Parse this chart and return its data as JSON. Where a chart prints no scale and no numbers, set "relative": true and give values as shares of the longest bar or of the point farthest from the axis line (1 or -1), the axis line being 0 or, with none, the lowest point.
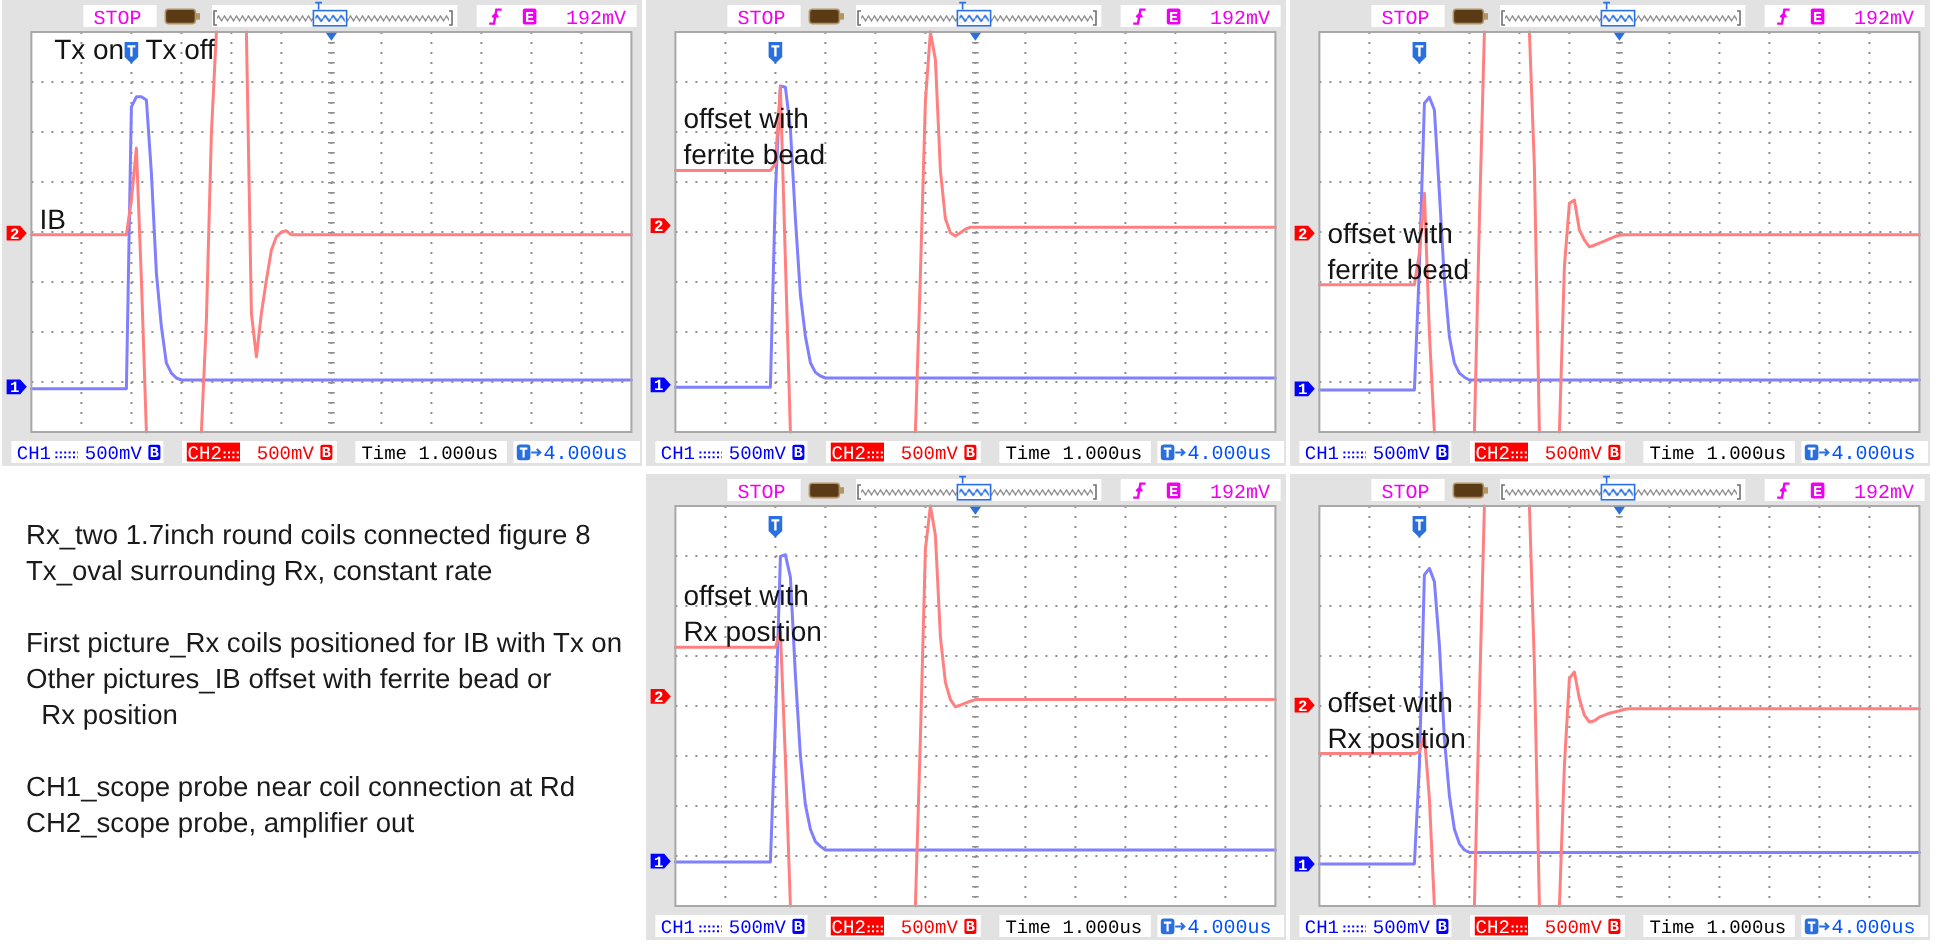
{
  "chart_data": [
    {
      "type": "line",
      "relative": true,
      "categories": [
        null,
        null,
        null,
        null,
        null,
        null,
        null,
        null,
        null,
        null,
        null,
        null,
        null,
        null,
        null,
        null,
        null,
        null,
        null,
        null,
        null,
        null,
        null,
        null,
        null,
        null,
        null,
        null,
        null,
        null,
        null,
        null,
        null,
        null,
        null,
        null,
        null,
        null,
        null,
        null,
        null,
        null,
        null,
        null,
        null,
        null,
        null,
        null,
        null,
        null,
        null,
        null,
        null,
        null,
        null,
        null,
        null,
        null,
        null,
        null,
        null,
        null,
        null,
        null,
        null,
        null,
        null,
        null,
        null,
        null,
        null,
        null,
        null,
        null,
        null,
        null,
        null,
        null,
        null,
        null,
        null,
        null,
        null,
        null,
        null,
        null,
        null,
        null,
        null,
        null,
        null,
        null,
        null,
        null,
        null,
        null,
        null,
        null,
        null,
        null,
        null,
        null,
        null,
        null,
        null,
        null,
        null,
        null,
        null,
        null,
        null,
        null,
        null,
        null,
        null,
        null,
        null,
        null,
        null,
        null,
        null
      ],
      "series": [
        {
          "name": "CH1",
          "color": "#8080ff",
          "values": [
            0.108,
            0.108,
            0.108,
            0.108,
            0.108,
            0.108,
            0.108,
            0.108,
            0.108,
            0.108,
            0.108,
            0.108,
            0.108,
            0.108,
            0.108,
            0.108,
            0.108,
            0.108,
            0.108,
            0.108,
            0.813,
            0.838,
            0.838,
            0.83,
            0.647,
            0.397,
            0.263,
            0.172,
            0.147,
            0.135,
            0.13,
            0.13,
            0.13,
            0.13,
            0.13,
            0.13,
            0.13,
            0.13,
            0.13,
            0.13,
            0.13,
            0.13,
            0.13,
            0.13,
            0.13,
            0.13,
            0.13,
            0.13,
            0.13,
            0.13,
            0.13,
            0.13,
            0.13,
            0.13,
            0.13,
            0.13,
            0.13,
            0.13,
            0.13,
            0.13,
            0.13,
            0.13,
            0.13,
            0.13,
            0.13,
            0.13,
            0.13,
            0.13,
            0.13,
            0.13,
            0.13,
            0.13,
            0.13,
            0.13,
            0.13,
            0.13,
            0.13,
            0.13,
            0.13,
            0.13,
            0.13,
            0.13,
            0.13,
            0.13,
            0.13,
            0.13,
            0.13,
            0.13,
            0.13,
            0.13,
            0.13,
            0.13,
            0.13,
            0.13,
            0.13,
            0.13,
            0.13,
            0.13,
            0.13,
            0.13,
            0.13,
            0.13,
            0.13,
            0.13,
            0.13,
            0.13,
            0.13,
            0.13,
            0.13,
            0.13,
            0.13,
            0.13,
            0.13,
            0.13,
            0.13,
            0.13,
            0.13,
            0.13,
            0.13,
            0.13,
            0.13
          ]
        },
        {
          "name": "CH2",
          "color": "#ff8080",
          "values": [
            0.493,
            0.493,
            0.493,
            0.493,
            0.493,
            0.493,
            0.493,
            0.493,
            0.493,
            0.493,
            0.493,
            0.493,
            0.493,
            0.493,
            0.493,
            0.493,
            0.493,
            0.493,
            0.493,
            0.493,
            0.58,
            0.71,
            0.38,
            0,
            null,
            null,
            null,
            null,
            null,
            null,
            null,
            null,
            null,
            null,
            0,
            0.28,
            0.747,
            1,
            null,
            null,
            null,
            null,
            null,
            1,
            0.297,
            0.188,
            0.297,
            0.38,
            0.455,
            0.488,
            0.5,
            0.503,
            0.493,
            0.493,
            0.493,
            0.493,
            0.493,
            0.493,
            0.493,
            0.493,
            0.493,
            0.493,
            0.493,
            0.493,
            0.493,
            0.493,
            0.493,
            0.493,
            0.493,
            0.493,
            0.493,
            0.493,
            0.493,
            0.493,
            0.493,
            0.493,
            0.493,
            0.493,
            0.493,
            0.493,
            0.493,
            0.493,
            0.493,
            0.493,
            0.493,
            0.493,
            0.493,
            0.493,
            0.493,
            0.493,
            0.493,
            0.493,
            0.493,
            0.493,
            0.493,
            0.493,
            0.493,
            0.493,
            0.493,
            0.493,
            0.493,
            0.493,
            0.493,
            0.493,
            0.493,
            0.493,
            0.493,
            0.493,
            0.493,
            0.493,
            0.493,
            0.493,
            0.493,
            0.493,
            0.493,
            0.493,
            0.493,
            0.493,
            0.493,
            0.493,
            0.493
          ]
        }
      ],
      "grid": true,
      "legend": "bottom",
      "annotations": [
        "STOP",
        "E",
        "192mV",
        "500mV",
        "B",
        "500mV",
        "B",
        "Time 1.000us",
        "4.000us",
        {
          "text": "1",
          "y": 0.113
        },
        {
          "text": "2",
          "y": 0.497
        },
        "Tx on",
        "Tx off",
        {
          "text": "IB",
          "y": 0.493
        }
      ]
    },
    {
      "type": "line",
      "relative": true,
      "categories": [
        null,
        null,
        null,
        null,
        null,
        null,
        null,
        null,
        null,
        null,
        null,
        null,
        null,
        null,
        null,
        null,
        null,
        null,
        null,
        null,
        null,
        null,
        null,
        null,
        null,
        null,
        null,
        null,
        null,
        null,
        null,
        null,
        null,
        null,
        null,
        null,
        null,
        null,
        null,
        null,
        null,
        null,
        null,
        null,
        null,
        null,
        null,
        null,
        null,
        null,
        null,
        null,
        null,
        null,
        null,
        null,
        null,
        null,
        null,
        null,
        null,
        null,
        null,
        null,
        null,
        null,
        null,
        null,
        null,
        null,
        null,
        null,
        null,
        null,
        null,
        null,
        null,
        null,
        null,
        null,
        null,
        null,
        null,
        null,
        null,
        null,
        null,
        null,
        null,
        null,
        null,
        null,
        null,
        null,
        null,
        null,
        null,
        null,
        null,
        null,
        null,
        null,
        null,
        null,
        null,
        null,
        null,
        null,
        null,
        null,
        null,
        null,
        null,
        null,
        null,
        null,
        null,
        null,
        null,
        null,
        null
      ],
      "series": [
        {
          "name": "CH1",
          "color": "#8080ff",
          "values": [
            0.112,
            0.112,
            0.112,
            0.112,
            0.112,
            0.112,
            0.112,
            0.112,
            0.112,
            0.112,
            0.112,
            0.112,
            0.112,
            0.112,
            0.112,
            0.112,
            0.112,
            0.112,
            0.112,
            0.112,
            0.602,
            0.865,
            0.862,
            0.758,
            0.533,
            0.343,
            0.239,
            0.173,
            0.149,
            0.14,
            0.135,
            0.135,
            0.135,
            0.135,
            0.135,
            0.135,
            0.135,
            0.135,
            0.135,
            0.135,
            0.135,
            0.135,
            0.135,
            0.135,
            0.135,
            0.135,
            0.135,
            0.135,
            0.135,
            0.135,
            0.135,
            0.135,
            0.135,
            0.135,
            0.135,
            0.135,
            0.135,
            0.135,
            0.135,
            0.135,
            0.135,
            0.135,
            0.135,
            0.135,
            0.135,
            0.135,
            0.135,
            0.135,
            0.135,
            0.135,
            0.135,
            0.135,
            0.135,
            0.135,
            0.135,
            0.135,
            0.135,
            0.135,
            0.135,
            0.135,
            0.135,
            0.135,
            0.135,
            0.135,
            0.135,
            0.135,
            0.135,
            0.135,
            0.135,
            0.135,
            0.135,
            0.135,
            0.135,
            0.135,
            0.135,
            0.135,
            0.135,
            0.135,
            0.135,
            0.135,
            0.135,
            0.135,
            0.135,
            0.135,
            0.135,
            0.135,
            0.135,
            0.135,
            0.135,
            0.135,
            0.135,
            0.135,
            0.135,
            0.135,
            0.135,
            0.135,
            0.135,
            0.135,
            0.135,
            0.135,
            0.135
          ]
        },
        {
          "name": "CH2",
          "color": "#ff8080",
          "values": [
            0.654,
            0.654,
            0.654,
            0.654,
            0.654,
            0.654,
            0.654,
            0.654,
            0.654,
            0.654,
            0.654,
            0.654,
            0.654,
            0.654,
            0.654,
            0.654,
            0.654,
            0.654,
            0.654,
            0.654,
            0.671,
            0.862,
            0.429,
            0,
            null,
            null,
            null,
            null,
            null,
            null,
            null,
            null,
            null,
            null,
            null,
            null,
            null,
            null,
            null,
            null,
            null,
            null,
            null,
            null,
            null,
            null,
            null,
            null,
            0,
            0.394,
            0.827,
            1,
            0.931,
            0.654,
            0.533,
            0.498,
            0.49,
            0.498,
            0.507,
            0.512,
            0.512,
            0.512,
            0.512,
            0.512,
            0.512,
            0.512,
            0.512,
            0.512,
            0.512,
            0.512,
            0.512,
            0.512,
            0.512,
            0.512,
            0.512,
            0.512,
            0.512,
            0.512,
            0.512,
            0.512,
            0.512,
            0.512,
            0.512,
            0.512,
            0.512,
            0.512,
            0.512,
            0.512,
            0.512,
            0.512,
            0.512,
            0.512,
            0.512,
            0.512,
            0.512,
            0.512,
            0.512,
            0.512,
            0.512,
            0.512,
            0.512,
            0.512,
            0.512,
            0.512,
            0.512,
            0.512,
            0.512,
            0.512,
            0.512,
            0.512,
            0.512,
            0.512,
            0.512,
            0.512,
            0.512,
            0.512,
            0.512,
            0.512,
            0.512,
            0.512,
            0.512
          ]
        }
      ],
      "grid": true,
      "legend": "bottom",
      "annotations": [
        "STOP",
        "E",
        "192mV",
        "500mV",
        "B",
        "500mV",
        "B",
        "Time 1.000us",
        "4.000us",
        {
          "text": "1",
          "y": 0.118
        },
        {
          "text": "2",
          "y": 0.516
        },
        {
          "text": "offset with\nferrite bead",
          "y": 0.654
        }
      ]
    },
    {
      "type": "line",
      "relative": true,
      "categories": [
        null,
        null,
        null,
        null,
        null,
        null,
        null,
        null,
        null,
        null,
        null,
        null,
        null,
        null,
        null,
        null,
        null,
        null,
        null,
        null,
        null,
        null,
        null,
        null,
        null,
        null,
        null,
        null,
        null,
        null,
        null,
        null,
        null,
        null,
        null,
        null,
        null,
        null,
        null,
        null,
        null,
        null,
        null,
        null,
        null,
        null,
        null,
        null,
        null,
        null,
        null,
        null,
        null,
        null,
        null,
        null,
        null,
        null,
        null,
        null,
        null,
        null,
        null,
        null,
        null,
        null,
        null,
        null,
        null,
        null,
        null,
        null,
        null,
        null,
        null,
        null,
        null,
        null,
        null,
        null,
        null,
        null,
        null,
        null,
        null,
        null,
        null,
        null,
        null,
        null,
        null,
        null,
        null,
        null,
        null,
        null,
        null,
        null,
        null,
        null,
        null,
        null,
        null,
        null,
        null,
        null,
        null,
        null,
        null,
        null,
        null,
        null,
        null,
        null,
        null,
        null,
        null,
        null,
        null,
        null,
        null
      ],
      "series": [
        {
          "name": "CH1",
          "color": "#8080ff",
          "values": [
            0.105,
            0.105,
            0.105,
            0.105,
            0.105,
            0.105,
            0.105,
            0.105,
            0.105,
            0.105,
            0.105,
            0.105,
            0.105,
            0.105,
            0.105,
            0.105,
            0.105,
            0.105,
            0.105,
            0.105,
            0.413,
            0.822,
            0.837,
            0.805,
            0.597,
            0.38,
            0.238,
            0.172,
            0.147,
            0.137,
            0.13,
            0.13,
            0.13,
            0.13,
            0.13,
            0.13,
            0.13,
            0.13,
            0.13,
            0.13,
            0.13,
            0.13,
            0.13,
            0.13,
            0.13,
            0.13,
            0.13,
            0.13,
            0.13,
            0.13,
            0.13,
            0.13,
            0.13,
            0.13,
            0.13,
            0.13,
            0.13,
            0.13,
            0.13,
            0.13,
            0.13,
            0.13,
            0.13,
            0.13,
            0.13,
            0.13,
            0.13,
            0.13,
            0.13,
            0.13,
            0.13,
            0.13,
            0.13,
            0.13,
            0.13,
            0.13,
            0.13,
            0.13,
            0.13,
            0.13,
            0.13,
            0.13,
            0.13,
            0.13,
            0.13,
            0.13,
            0.13,
            0.13,
            0.13,
            0.13,
            0.13,
            0.13,
            0.13,
            0.13,
            0.13,
            0.13,
            0.13,
            0.13,
            0.13,
            0.13,
            0.13,
            0.13,
            0.13,
            0.13,
            0.13,
            0.13,
            0.13,
            0.13,
            0.13,
            0.13,
            0.13,
            0.13,
            0.13,
            0.13,
            0.13,
            0.13,
            0.13,
            0.13,
            0.13,
            0.13,
            0.13
          ]
        },
        {
          "name": "CH2",
          "color": "#ff8080",
          "values": [
            0.368,
            0.368,
            0.368,
            0.368,
            0.368,
            0.368,
            0.368,
            0.368,
            0.368,
            0.368,
            0.368,
            0.368,
            0.368,
            0.368,
            0.368,
            0.368,
            0.368,
            0.368,
            0.368,
            0.368,
            0.447,
            0.597,
            0.247,
            0,
            null,
            null,
            null,
            null,
            null,
            null,
            null,
            0,
            0.53,
            1,
            null,
            null,
            null,
            null,
            null,
            null,
            null,
            null,
            1,
            0.663,
            0,
            null,
            null,
            null,
            0,
            0.413,
            0.572,
            0.58,
            0.505,
            0.48,
            0.463,
            0.467,
            0.472,
            0.477,
            0.483,
            0.488,
            0.492,
            0.493,
            0.493,
            0.493,
            0.493,
            0.493,
            0.493,
            0.493,
            0.493,
            0.493,
            0.493,
            0.493,
            0.493,
            0.493,
            0.493,
            0.493,
            0.493,
            0.493,
            0.493,
            0.493,
            0.493,
            0.493,
            0.493,
            0.493,
            0.493,
            0.493,
            0.493,
            0.493,
            0.493,
            0.493,
            0.493,
            0.493,
            0.493,
            0.493,
            0.493,
            0.493,
            0.493,
            0.493,
            0.493,
            0.493,
            0.493,
            0.493,
            0.493,
            0.493,
            0.493,
            0.493,
            0.493,
            0.493,
            0.493,
            0.493,
            0.493,
            0.493,
            0.493,
            0.493,
            0.493,
            0.493,
            0.493,
            0.493,
            0.493,
            0.493,
            0.493
          ]
        }
      ],
      "grid": true,
      "legend": "bottom",
      "annotations": [
        "STOP",
        "E",
        "192mV",
        "500mV",
        "B",
        "500mV",
        "B",
        "Time 1.000us",
        "4.000us",
        {
          "text": "1",
          "y": 0.108
        },
        {
          "text": "2",
          "y": 0.497
        },
        {
          "text": "offset with\nferrite bead",
          "y": 0.368
        }
      ]
    },
    {
      "type": "other",
      "annotations": [
        "Rx_two 1.7inch round coils connected figure 8\nTx_oval surrounding Rx, constant rate",
        "First picture_Rx coils positioned for IB with Tx on\nOther pictures_IB offset with ferrite bead or\n  Rx position",
        "CH1_scope probe near coil connection at Rd\nCH2_scope probe, amplifier out"
      ]
    },
    {
      "type": "line",
      "relative": true,
      "categories": [
        null,
        null,
        null,
        null,
        null,
        null,
        null,
        null,
        null,
        null,
        null,
        null,
        null,
        null,
        null,
        null,
        null,
        null,
        null,
        null,
        null,
        null,
        null,
        null,
        null,
        null,
        null,
        null,
        null,
        null,
        null,
        null,
        null,
        null,
        null,
        null,
        null,
        null,
        null,
        null,
        null,
        null,
        null,
        null,
        null,
        null,
        null,
        null,
        null,
        null,
        null,
        null,
        null,
        null,
        null,
        null,
        null,
        null,
        null,
        null,
        null,
        null,
        null,
        null,
        null,
        null,
        null,
        null,
        null,
        null,
        null,
        null,
        null,
        null,
        null,
        null,
        null,
        null,
        null,
        null,
        null,
        null,
        null,
        null,
        null,
        null,
        null,
        null,
        null,
        null,
        null,
        null,
        null,
        null,
        null,
        null,
        null,
        null,
        null,
        null,
        null,
        null,
        null,
        null,
        null,
        null,
        null,
        null,
        null,
        null,
        null,
        null,
        null,
        null,
        null,
        null,
        null,
        null,
        null,
        null,
        null
      ],
      "series": [
        {
          "name": "CH1",
          "color": "#8080ff",
          "values": [
            0.11,
            0.11,
            0.11,
            0.11,
            0.11,
            0.11,
            0.11,
            0.11,
            0.11,
            0.11,
            0.11,
            0.11,
            0.11,
            0.11,
            0.11,
            0.11,
            0.11,
            0.11,
            0.11,
            0.11,
            0.455,
            0.874,
            0.878,
            0.822,
            0.577,
            0.376,
            0.253,
            0.192,
            0.161,
            0.149,
            0.14,
            0.14,
            0.14,
            0.14,
            0.14,
            0.14,
            0.14,
            0.14,
            0.14,
            0.14,
            0.14,
            0.14,
            0.14,
            0.14,
            0.14,
            0.14,
            0.14,
            0.14,
            0.14,
            0.14,
            0.14,
            0.14,
            0.14,
            0.14,
            0.14,
            0.14,
            0.14,
            0.14,
            0.14,
            0.14,
            0.14,
            0.14,
            0.14,
            0.14,
            0.14,
            0.14,
            0.14,
            0.14,
            0.14,
            0.14,
            0.14,
            0.14,
            0.14,
            0.14,
            0.14,
            0.14,
            0.14,
            0.14,
            0.14,
            0.14,
            0.14,
            0.14,
            0.14,
            0.14,
            0.14,
            0.14,
            0.14,
            0.14,
            0.14,
            0.14,
            0.14,
            0.14,
            0.14,
            0.14,
            0.14,
            0.14,
            0.14,
            0.14,
            0.14,
            0.14,
            0.14,
            0.14,
            0.14,
            0.14,
            0.14,
            0.14,
            0.14,
            0.14,
            0.14,
            0.14,
            0.14,
            0.14,
            0.14,
            0.14,
            0.14,
            0.14,
            0.14,
            0.14,
            0.14,
            0.14,
            0.14
          ]
        },
        {
          "name": "CH2",
          "color": "#ff8080",
          "values": [
            0.647,
            0.647,
            0.647,
            0.647,
            0.647,
            0.647,
            0.647,
            0.647,
            0.647,
            0.647,
            0.647,
            0.647,
            0.647,
            0.647,
            0.647,
            0.647,
            0.647,
            0.647,
            0.647,
            0.647,
            0.647,
            0.685,
            0.367,
            0,
            null,
            null,
            null,
            null,
            null,
            null,
            null,
            null,
            null,
            null,
            null,
            null,
            null,
            null,
            null,
            null,
            null,
            null,
            null,
            null,
            null,
            null,
            null,
            null,
            0,
            0.42,
            0.892,
            1,
            0.927,
            0.673,
            0.559,
            0.516,
            0.498,
            0.502,
            0.507,
            0.512,
            0.516,
            0.516,
            0.516,
            0.516,
            0.516,
            0.516,
            0.516,
            0.516,
            0.516,
            0.516,
            0.516,
            0.516,
            0.516,
            0.516,
            0.516,
            0.516,
            0.516,
            0.516,
            0.516,
            0.516,
            0.516,
            0.516,
            0.516,
            0.516,
            0.516,
            0.516,
            0.516,
            0.516,
            0.516,
            0.516,
            0.516,
            0.516,
            0.516,
            0.516,
            0.516,
            0.516,
            0.516,
            0.516,
            0.516,
            0.516,
            0.516,
            0.516,
            0.516,
            0.516,
            0.516,
            0.516,
            0.516,
            0.516,
            0.516,
            0.516,
            0.516,
            0.516,
            0.516,
            0.516,
            0.516,
            0.516,
            0.516,
            0.516,
            0.516,
            0.516,
            0.516
          ]
        }
      ],
      "grid": true,
      "legend": "bottom",
      "annotations": [
        "STOP",
        "E",
        "192mV",
        "500mV",
        "B",
        "500mV",
        "B",
        "Time 1.000us",
        "4.000us",
        {
          "text": "1",
          "y": 0.112
        },
        {
          "text": "2",
          "y": 0.524
        },
        {
          "text": "offset with\nRx position",
          "y": 0.647
        }
      ]
    },
    {
      "type": "line",
      "relative": true,
      "categories": [
        null,
        null,
        null,
        null,
        null,
        null,
        null,
        null,
        null,
        null,
        null,
        null,
        null,
        null,
        null,
        null,
        null,
        null,
        null,
        null,
        null,
        null,
        null,
        null,
        null,
        null,
        null,
        null,
        null,
        null,
        null,
        null,
        null,
        null,
        null,
        null,
        null,
        null,
        null,
        null,
        null,
        null,
        null,
        null,
        null,
        null,
        null,
        null,
        null,
        null,
        null,
        null,
        null,
        null,
        null,
        null,
        null,
        null,
        null,
        null,
        null,
        null,
        null,
        null,
        null,
        null,
        null,
        null,
        null,
        null,
        null,
        null,
        null,
        null,
        null,
        null,
        null,
        null,
        null,
        null,
        null,
        null,
        null,
        null,
        null,
        null,
        null,
        null,
        null,
        null,
        null,
        null,
        null,
        null,
        null,
        null,
        null,
        null,
        null,
        null,
        null,
        null,
        null,
        null,
        null,
        null,
        null,
        null,
        null,
        null,
        null,
        null,
        null,
        null,
        null,
        null,
        null,
        null,
        null,
        null,
        null
      ],
      "series": [
        {
          "name": "CH1",
          "color": "#8080ff",
          "values": [
            0.105,
            0.105,
            0.105,
            0.105,
            0.105,
            0.105,
            0.105,
            0.105,
            0.105,
            0.105,
            0.105,
            0.105,
            0.105,
            0.105,
            0.105,
            0.105,
            0.105,
            0.105,
            0.105,
            0.105,
            0.351,
            0.828,
            0.844,
            0.811,
            0.652,
            0.418,
            0.276,
            0.192,
            0.156,
            0.14,
            0.134,
            0.134,
            0.134,
            0.134,
            0.134,
            0.134,
            0.134,
            0.134,
            0.134,
            0.134,
            0.134,
            0.134,
            0.134,
            0.134,
            0.134,
            0.134,
            0.134,
            0.134,
            0.134,
            0.134,
            0.134,
            0.134,
            0.134,
            0.134,
            0.134,
            0.134,
            0.134,
            0.134,
            0.134,
            0.134,
            0.134,
            0.134,
            0.134,
            0.134,
            0.134,
            0.134,
            0.134,
            0.134,
            0.134,
            0.134,
            0.134,
            0.134,
            0.134,
            0.134,
            0.134,
            0.134,
            0.134,
            0.134,
            0.134,
            0.134,
            0.134,
            0.134,
            0.134,
            0.134,
            0.134,
            0.134,
            0.134,
            0.134,
            0.134,
            0.134,
            0.134,
            0.134,
            0.134,
            0.134,
            0.134,
            0.134,
            0.134,
            0.134,
            0.134,
            0.134,
            0.134,
            0.134,
            0.134,
            0.134,
            0.134,
            0.134,
            0.134,
            0.134,
            0.134,
            0.134,
            0.134,
            0.134,
            0.134,
            0.134,
            0.134,
            0.134,
            0.134,
            0.134,
            0.134,
            0.134,
            0.134
          ]
        },
        {
          "name": "CH2",
          "color": "#ff8080",
          "values": [
            0.381,
            0.381,
            0.381,
            0.381,
            0.381,
            0.381,
            0.381,
            0.381,
            0.381,
            0.381,
            0.381,
            0.381,
            0.381,
            0.381,
            0.381,
            0.381,
            0.381,
            0.381,
            0.381,
            0.381,
            0.385,
            0.426,
            0.268,
            0,
            null,
            null,
            null,
            null,
            null,
            null,
            null,
            0,
            0.518,
            1,
            null,
            null,
            null,
            null,
            null,
            null,
            null,
            null,
            1,
            0.602,
            0,
            null,
            null,
            null,
            0,
            0.351,
            0.569,
            0.585,
            0.518,
            0.477,
            0.46,
            0.463,
            0.472,
            0.477,
            0.482,
            0.485,
            0.488,
            0.492,
            0.493,
            0.493,
            0.493,
            0.493,
            0.493,
            0.493,
            0.493,
            0.493,
            0.493,
            0.493,
            0.493,
            0.493,
            0.493,
            0.493,
            0.493,
            0.493,
            0.493,
            0.493,
            0.493,
            0.493,
            0.493,
            0.493,
            0.493,
            0.493,
            0.493,
            0.493,
            0.493,
            0.493,
            0.493,
            0.493,
            0.493,
            0.493,
            0.493,
            0.493,
            0.493,
            0.493,
            0.493,
            0.493,
            0.493,
            0.493,
            0.493,
            0.493,
            0.493,
            0.493,
            0.493,
            0.493,
            0.493,
            0.493,
            0.493,
            0.493,
            0.493,
            0.493,
            0.493,
            0.493,
            0.493,
            0.493,
            0.493,
            0.493,
            0.493
          ]
        }
      ],
      "grid": true,
      "legend": "bottom",
      "annotations": [
        "STOP",
        "E",
        "192mV",
        "500mV",
        "B",
        "500mV",
        "B",
        "Time 1.000us",
        "4.000us",
        {
          "text": "1",
          "y": 0.105
        },
        {
          "text": "2",
          "y": 0.502
        },
        {
          "text": "offset with\nRx position",
          "y": 0.381
        }
      ]
    }
  ]
}
